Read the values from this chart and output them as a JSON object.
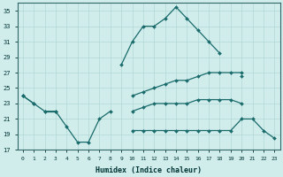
{
  "xlabel": "Humidex (Indice chaleur)",
  "x": [
    0,
    1,
    2,
    3,
    4,
    5,
    6,
    7,
    8,
    9,
    10,
    11,
    12,
    13,
    14,
    15,
    16,
    17,
    18,
    19,
    20,
    21,
    22,
    23
  ],
  "y1": [
    24,
    23,
    null,
    null,
    null,
    null,
    null,
    null,
    null,
    28,
    31,
    33,
    33,
    34,
    35.5,
    34,
    32.5,
    31,
    29.5,
    null,
    26.5,
    null,
    null,
    null
  ],
  "y2": [
    24,
    null,
    null,
    null,
    null,
    null,
    null,
    null,
    null,
    null,
    24,
    24.5,
    25,
    25.5,
    26,
    26,
    26.5,
    27,
    27,
    27,
    27,
    null,
    null,
    null
  ],
  "y3": [
    null,
    null,
    22,
    22,
    null,
    null,
    null,
    null,
    null,
    null,
    22,
    22.5,
    23,
    23,
    23,
    23,
    23.5,
    23.5,
    23.5,
    23.5,
    23,
    null,
    null,
    null
  ],
  "y4": [
    24,
    23,
    22,
    22,
    20,
    18,
    18,
    21,
    22,
    null,
    19.5,
    19.5,
    19.5,
    19.5,
    19.5,
    19.5,
    19.5,
    19.5,
    19.5,
    19.5,
    21,
    21,
    19.5,
    18.5
  ],
  "ylim": [
    17,
    36
  ],
  "yticks": [
    17,
    19,
    21,
    23,
    25,
    27,
    29,
    31,
    33,
    35
  ],
  "xlim": [
    -0.5,
    23.5
  ],
  "bg_color": "#d0edec",
  "line_color": "#1a6b6b",
  "grid_color": "#afd8d6"
}
